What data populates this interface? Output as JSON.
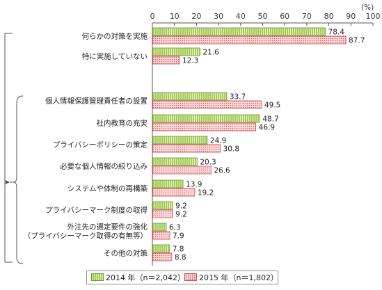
{
  "chart_data": {
    "type": "bar",
    "orientation": "horizontal",
    "unit_label": "(%)",
    "xlim": [
      0,
      100
    ],
    "xticks": [
      0,
      10,
      20,
      30,
      40,
      50,
      60,
      70,
      80,
      90,
      100
    ],
    "categories": [
      "何らかの対策を実施",
      "特に実施していない",
      "個人情報保護管理責任者の設置",
      "社内教育の充実",
      "プライバシーポリシーの策定",
      "必要な個人情報の絞り込み",
      "システムや体制の再構築",
      "プライバシーマーク制度の取得",
      "外注先の選定要件の強化\n（プライバシーマーク取得の有無等）",
      "その他の対策"
    ],
    "series": [
      {
        "name": "2014 年（n＝2,042）",
        "color": "#a6cc5c",
        "values": [
          78.4,
          21.6,
          33.7,
          48.7,
          24.9,
          20.3,
          13.9,
          9.2,
          6.3,
          7.8
        ]
      },
      {
        "name": "2015 年（n＝1,802）",
        "color": "#e0575e",
        "values": [
          87.7,
          12.3,
          49.5,
          46.9,
          30.8,
          26.6,
          19.2,
          9.2,
          7.9,
          8.8
        ]
      }
    ],
    "value_labels": [
      [
        "78.4",
        "21.6",
        "33.7",
        "48.7",
        "24.9",
        "20.3",
        "13.9",
        "9.2",
        "6.3",
        "7.8"
      ],
      [
        "87.7",
        "12.3",
        "49.5",
        "46.9",
        "30.8",
        "26.6",
        "19.2",
        "9.2",
        "7.9",
        "8.8"
      ]
    ],
    "grid": false,
    "legend_position": "bottom"
  }
}
